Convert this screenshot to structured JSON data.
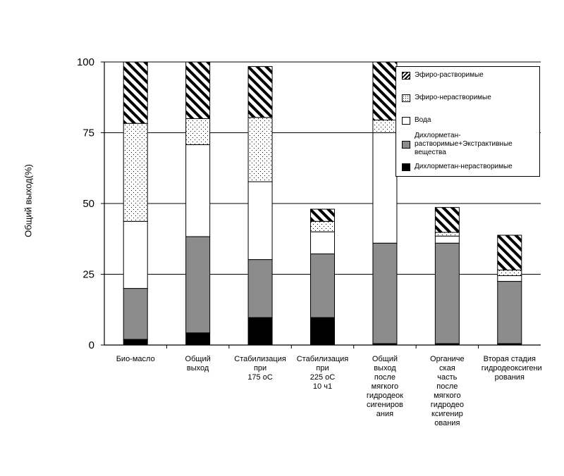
{
  "chart_data": {
    "type": "bar",
    "stacked": true,
    "ylabel": "Общий выход(%)",
    "ylim": [
      0,
      100
    ],
    "yticks": [
      "0",
      "25",
      "50",
      "75",
      "100"
    ],
    "grid": "horizontal",
    "legend_position": "top-right",
    "categories": [
      [
        "Био-масло"
      ],
      [
        "Общий",
        "выход"
      ],
      [
        "Стабилизация",
        "при",
        "175 оС"
      ],
      [
        "Стабилизация",
        "при",
        "225 оС",
        "10    ч1"
      ],
      [
        "Общий",
        "выход",
        "после",
        "мягкого",
        "гидродеок",
        "сигениров",
        "ания"
      ],
      [
        "Органиче",
        "ская",
        "часть",
        "после",
        "мягкого",
        "гидродео",
        "ксигенир",
        "ования"
      ],
      [
        "Вторая стадия",
        "гидродеоксигени",
        "рования"
      ]
    ],
    "series": [
      {
        "name": "Дихлорметан-нерастворимые",
        "fill": "black",
        "values": [
          2,
          4.3,
          9.7,
          9.7,
          0.5,
          0.5,
          0.5
        ]
      },
      {
        "name": "Дихлорметан-растворимые+Экстрактивные вещества",
        "fill": "gray",
        "values": [
          18,
          34,
          20.5,
          22.5,
          35.5,
          35.5,
          22
        ]
      },
      {
        "name": "Вода",
        "fill": "white",
        "values": [
          23.7,
          32.5,
          27.5,
          7.8,
          39,
          2.5,
          2
        ]
      },
      {
        "name": "Эфиро-нерастворимые",
        "fill": "dots",
        "values": [
          34.6,
          9.2,
          22.7,
          3.7,
          4.5,
          1.3,
          2
        ]
      },
      {
        "name": "Эфиро-растворимые",
        "fill": "hatch",
        "values": [
          21.7,
          20,
          18,
          4.3,
          20.5,
          8.8,
          12.3
        ]
      }
    ],
    "legend_order": [
      4,
      3,
      2,
      1,
      0
    ],
    "colors": {
      "black": "#000000",
      "gray": "#8c8c8c",
      "white": "#ffffff"
    }
  }
}
